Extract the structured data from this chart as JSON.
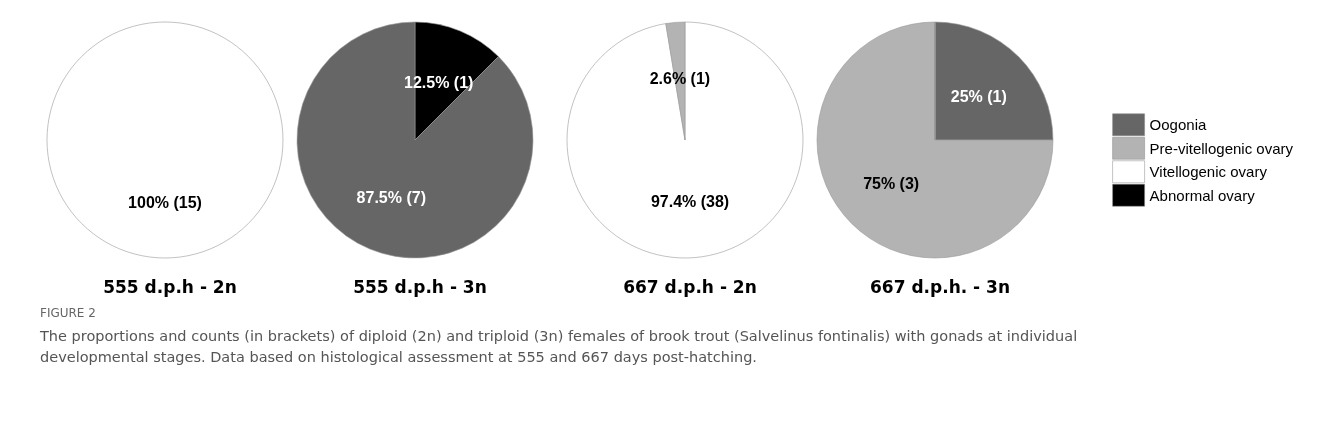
{
  "chart_data": [
    {
      "type": "pie",
      "title": "555 d.p.h - 2n",
      "categories": [
        null
      ],
      "values": [
        100
      ],
      "colors": [
        "#ffffff"
      ],
      "value_labels": [
        "100% (15)"
      ],
      "legend": false
    },
    {
      "type": "pie",
      "title": "555 d.p.h - 3n",
      "categories": [
        null,
        null
      ],
      "values": [
        12.5,
        87.5
      ],
      "colors": [
        "#000000",
        "#666666"
      ],
      "value_labels": [
        "12.5% (1)",
        "87.5% (7)"
      ],
      "legend": false
    },
    {
      "type": "pie",
      "title": "667 d.p.h - 2n",
      "categories": [
        null,
        null
      ],
      "values": [
        97.4,
        2.6
      ],
      "colors": [
        "#ffffff",
        "#b3b3b3"
      ],
      "value_labels": [
        "97.4% (38)",
        "2.6% (1)"
      ],
      "legend": false
    },
    {
      "type": "pie",
      "title": "667 d.p.h. - 3n",
      "categories": [
        "Oogonia",
        "Pre-vitellogenic ovary",
        "Vitellogenic ovary",
        "Abnormal ovary"
      ],
      "values": [
        25,
        75,
        0,
        0
      ],
      "colors": [
        "#666666",
        "#b3b3b3",
        "#ffffff",
        "#000000"
      ],
      "value_labels": [
        "25% (1)",
        "75% (3)",
        null,
        null
      ],
      "legend": "right"
    },
    {
      "type": "other",
      "title": "FIGURE 2",
      "annotations": [
        "The proportions and counts (in brackets) of diploid (2n) and triploid (3n) females of brook trout (Salvelinus fontinalis) with gonads at individual developmental stages. Data based on histological assessment at 555 and 667 days post-hatching."
      ]
    }
  ]
}
